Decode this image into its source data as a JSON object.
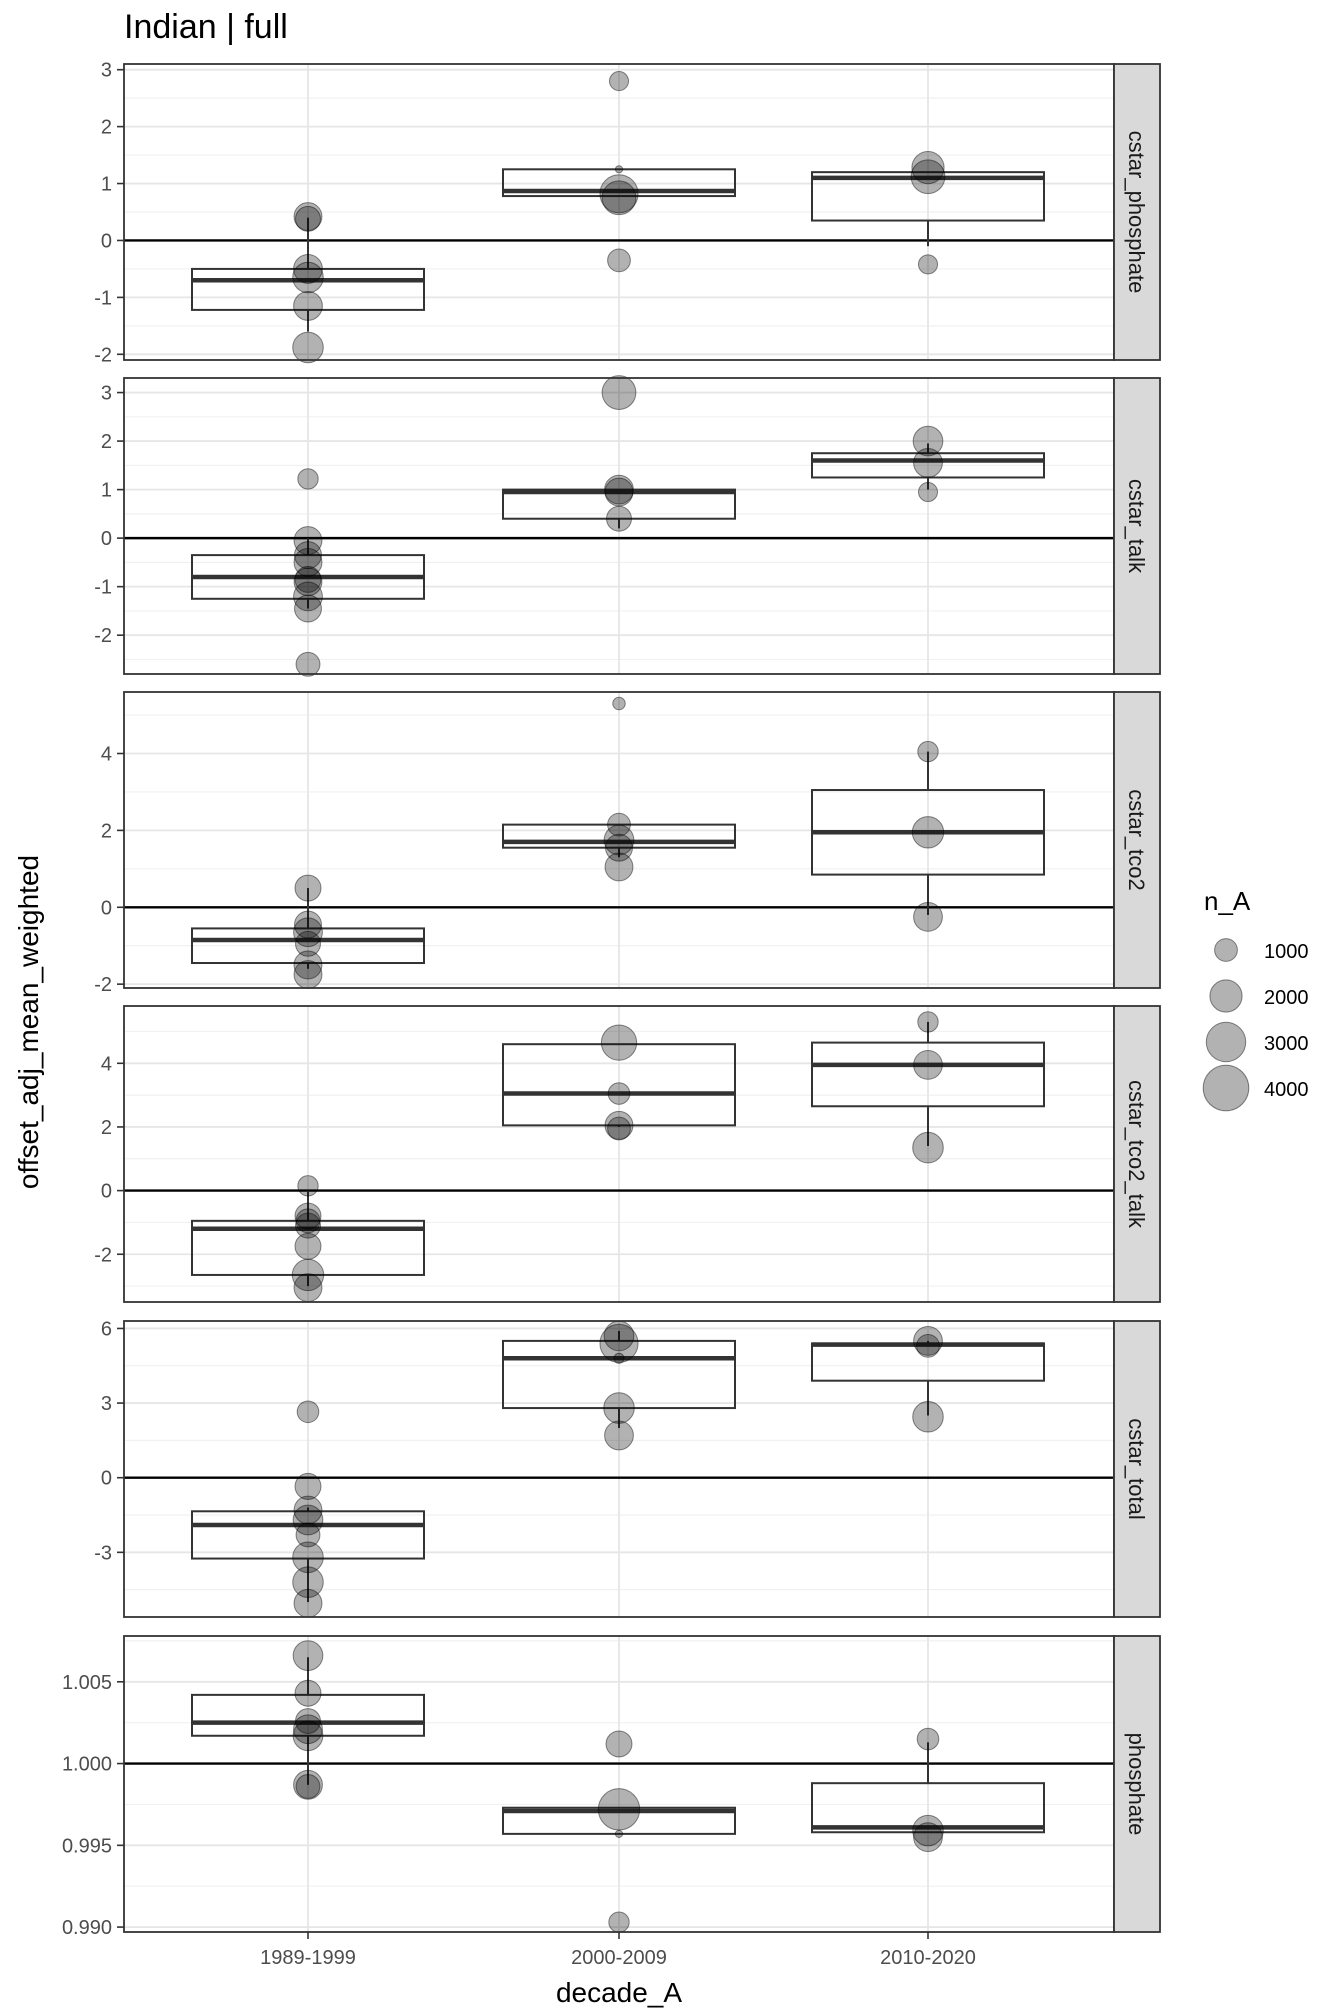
{
  "title": "Indian | full",
  "chart_data": {
    "type": "boxplot",
    "title": "Indian | full",
    "xlabel": "decade_A",
    "ylabel": "offset_adj_mean_weighted",
    "categories": [
      "1989-1999",
      "2000-2009",
      "2010-2020"
    ],
    "reference_line": {
      "variable": "y",
      "note": "horizontal line",
      "values_by_facet": [
        0,
        0,
        0,
        0,
        0,
        1.0
      ]
    },
    "grid": true,
    "legend": {
      "title": "n_A",
      "placement": "right",
      "entries": [
        {
          "label": "1000",
          "value": 1000
        },
        {
          "label": "2000",
          "value": 2000
        },
        {
          "label": "3000",
          "value": 3000
        },
        {
          "label": "4000",
          "value": 4000
        }
      ]
    },
    "facets": [
      {
        "strip": "cstar_phosphate",
        "ylim": [
          -2.1,
          3.1
        ],
        "yticks": [
          -2,
          -1,
          0,
          1,
          2,
          3
        ],
        "ytick_labels": [
          "-2",
          "-1",
          "0",
          "1",
          "2",
          "3"
        ],
        "hline": 0,
        "boxes": [
          {
            "x": "1989-1999",
            "q1": -1.22,
            "median": -0.7,
            "q3": -0.5,
            "whisker_low": -1.6,
            "whisker_high": 0.4
          },
          {
            "x": "2000-2009",
            "q1": 0.78,
            "median": 0.87,
            "q3": 1.25,
            "whisker_low": 0.78,
            "whisker_high": 1.25
          },
          {
            "x": "2010-2020",
            "q1": 0.35,
            "median": 1.1,
            "q3": 1.2,
            "whisker_low": -0.1,
            "whisker_high": 1.2
          }
        ],
        "points": [
          {
            "x": "1989-1999",
            "y": 0.42,
            "n": 1500
          },
          {
            "x": "1989-1999",
            "y": 0.38,
            "n": 1200
          },
          {
            "x": "1989-1999",
            "y": -0.5,
            "n": 1600
          },
          {
            "x": "1989-1999",
            "y": -0.65,
            "n": 1800
          },
          {
            "x": "1989-1999",
            "y": -1.15,
            "n": 1600
          },
          {
            "x": "1989-1999",
            "y": -1.88,
            "n": 1800
          },
          {
            "x": "2000-2009",
            "y": 2.8,
            "n": 700
          },
          {
            "x": "2000-2009",
            "y": 1.25,
            "n": 100
          },
          {
            "x": "2000-2009",
            "y": 0.82,
            "n": 2800
          },
          {
            "x": "2000-2009",
            "y": 0.75,
            "n": 2200
          },
          {
            "x": "2000-2009",
            "y": -0.35,
            "n": 1000
          },
          {
            "x": "2010-2020",
            "y": 1.28,
            "n": 2000
          },
          {
            "x": "2010-2020",
            "y": 1.12,
            "n": 2200
          },
          {
            "x": "2010-2020",
            "y": -0.42,
            "n": 700
          }
        ]
      },
      {
        "strip": "cstar_talk",
        "ylim": [
          -2.8,
          3.3
        ],
        "yticks": [
          -2,
          -1,
          0,
          1,
          2,
          3
        ],
        "ytick_labels": [
          "-2",
          "-1",
          "0",
          "1",
          "2",
          "3"
        ],
        "hline": 0,
        "boxes": [
          {
            "x": "1989-1999",
            "q1": -1.25,
            "median": -0.8,
            "q3": -0.35,
            "whisker_low": -1.45,
            "whisker_high": 0
          },
          {
            "x": "2000-2009",
            "q1": 0.4,
            "median": 0.95,
            "q3": 1.0,
            "whisker_low": 0.2,
            "whisker_high": 1.0
          },
          {
            "x": "2010-2020",
            "q1": 1.25,
            "median": 1.6,
            "q3": 1.75,
            "whisker_low": 1.0,
            "whisker_high": 1.95
          }
        ],
        "points": [
          {
            "x": "1989-1999",
            "y": 1.22,
            "n": 800
          },
          {
            "x": "1989-1999",
            "y": -0.05,
            "n": 1500
          },
          {
            "x": "1989-1999",
            "y": -0.35,
            "n": 1400
          },
          {
            "x": "1989-1999",
            "y": -0.5,
            "n": 1500
          },
          {
            "x": "1989-1999",
            "y": -0.85,
            "n": 1300
          },
          {
            "x": "1989-1999",
            "y": -0.9,
            "n": 1500
          },
          {
            "x": "1989-1999",
            "y": -1.2,
            "n": 1600
          },
          {
            "x": "1989-1999",
            "y": -1.45,
            "n": 1400
          },
          {
            "x": "1989-1999",
            "y": -2.6,
            "n": 1100
          },
          {
            "x": "2000-2009",
            "y": 3.0,
            "n": 2200
          },
          {
            "x": "2000-2009",
            "y": 1.0,
            "n": 1600
          },
          {
            "x": "2000-2009",
            "y": 0.95,
            "n": 1500
          },
          {
            "x": "2000-2009",
            "y": 0.4,
            "n": 1200
          },
          {
            "x": "2010-2020",
            "y": 2.0,
            "n": 1700
          },
          {
            "x": "2010-2020",
            "y": 1.55,
            "n": 1600
          },
          {
            "x": "2010-2020",
            "y": 0.95,
            "n": 700
          }
        ]
      },
      {
        "strip": "cstar_tco2",
        "ylim": [
          -2.1,
          5.6
        ],
        "yticks": [
          -2,
          0,
          2,
          4
        ],
        "ytick_labels": [
          "-2",
          "0",
          "2",
          "4"
        ],
        "hline": 0,
        "boxes": [
          {
            "x": "1989-1999",
            "q1": -1.45,
            "median": -0.85,
            "q3": -0.55,
            "whisker_low": -1.6,
            "whisker_high": 0.5
          },
          {
            "x": "2000-2009",
            "q1": 1.55,
            "median": 1.7,
            "q3": 2.15,
            "whisker_low": 1.3,
            "whisker_high": 2.15
          },
          {
            "x": "2010-2020",
            "q1": 0.85,
            "median": 1.95,
            "q3": 3.05,
            "whisker_low": -0.2,
            "whisker_high": 4.05
          }
        ],
        "points": [
          {
            "x": "1989-1999",
            "y": 0.5,
            "n": 1300
          },
          {
            "x": "1989-1999",
            "y": -0.45,
            "n": 1400
          },
          {
            "x": "1989-1999",
            "y": -0.65,
            "n": 1600
          },
          {
            "x": "1989-1999",
            "y": -0.95,
            "n": 1200
          },
          {
            "x": "1989-1999",
            "y": -1.5,
            "n": 1500
          },
          {
            "x": "1989-1999",
            "y": -1.75,
            "n": 1500
          },
          {
            "x": "2000-2009",
            "y": 5.3,
            "n": 300
          },
          {
            "x": "2000-2009",
            "y": 2.15,
            "n": 1000
          },
          {
            "x": "2000-2009",
            "y": 1.75,
            "n": 1700
          },
          {
            "x": "2000-2009",
            "y": 1.55,
            "n": 1400
          },
          {
            "x": "2000-2009",
            "y": 1.05,
            "n": 1500
          },
          {
            "x": "2010-2020",
            "y": 4.05,
            "n": 800
          },
          {
            "x": "2010-2020",
            "y": 1.95,
            "n": 1900
          },
          {
            "x": "2010-2020",
            "y": -0.25,
            "n": 1600
          }
        ]
      },
      {
        "strip": "cstar_tco2_talk",
        "ylim": [
          -3.5,
          5.8
        ],
        "yticks": [
          -2,
          0,
          2,
          4
        ],
        "ytick_labels": [
          "-2",
          "0",
          "2",
          "4"
        ],
        "hline": 0,
        "boxes": [
          {
            "x": "1989-1999",
            "q1": -2.65,
            "median": -1.2,
            "q3": -0.95,
            "whisker_low": -3.0,
            "whisker_high": 0
          },
          {
            "x": "2000-2009",
            "q1": 2.05,
            "median": 3.05,
            "q3": 4.6,
            "whisker_low": 2.0,
            "whisker_high": 4.6
          },
          {
            "x": "2010-2020",
            "q1": 2.65,
            "median": 3.95,
            "q3": 4.65,
            "whisker_low": 1.4,
            "whisker_high": 5.3
          }
        ],
        "points": [
          {
            "x": "1989-1999",
            "y": 0.15,
            "n": 800
          },
          {
            "x": "1989-1999",
            "y": -0.8,
            "n": 1300
          },
          {
            "x": "1989-1999",
            "y": -0.95,
            "n": 1100
          },
          {
            "x": "1989-1999",
            "y": -1.1,
            "n": 1200
          },
          {
            "x": "1989-1999",
            "y": -1.75,
            "n": 1300
          },
          {
            "x": "1989-1999",
            "y": -2.65,
            "n": 1900
          },
          {
            "x": "1989-1999",
            "y": -3.05,
            "n": 1500
          },
          {
            "x": "2000-2009",
            "y": 4.65,
            "n": 2400
          },
          {
            "x": "2000-2009",
            "y": 3.05,
            "n": 900
          },
          {
            "x": "2000-2009",
            "y": 2.05,
            "n": 1500
          },
          {
            "x": "2000-2009",
            "y": 1.95,
            "n": 1000
          },
          {
            "x": "2010-2020",
            "y": 5.3,
            "n": 800
          },
          {
            "x": "2010-2020",
            "y": 3.95,
            "n": 1600
          },
          {
            "x": "2010-2020",
            "y": 1.35,
            "n": 1800
          }
        ]
      },
      {
        "strip": "cstar_total",
        "ylim": [
          -5.6,
          6.3
        ],
        "yticks": [
          -3,
          0,
          3,
          6
        ],
        "ytick_labels": [
          "-3",
          "0",
          "3",
          "6"
        ],
        "hline": 0,
        "boxes": [
          {
            "x": "1989-1999",
            "q1": -3.25,
            "median": -1.9,
            "q3": -1.35,
            "whisker_low": -5.0,
            "whisker_high": -1.2
          },
          {
            "x": "2000-2009",
            "q1": 2.8,
            "median": 4.8,
            "q3": 5.5,
            "whisker_low": 2.0,
            "whisker_high": 5.9
          },
          {
            "x": "2010-2020",
            "q1": 3.9,
            "median": 5.35,
            "q3": 5.4,
            "whisker_low": 2.5,
            "whisker_high": 5.5
          }
        ],
        "points": [
          {
            "x": "1989-1999",
            "y": 2.65,
            "n": 900
          },
          {
            "x": "1989-1999",
            "y": -0.35,
            "n": 1300
          },
          {
            "x": "1989-1999",
            "y": -1.3,
            "n": 1500
          },
          {
            "x": "1989-1999",
            "y": -1.7,
            "n": 1700
          },
          {
            "x": "1989-1999",
            "y": -2.3,
            "n": 1100
          },
          {
            "x": "1989-1999",
            "y": -3.2,
            "n": 1800
          },
          {
            "x": "1989-1999",
            "y": -4.2,
            "n": 1800
          },
          {
            "x": "1989-1999",
            "y": -5.05,
            "n": 1500
          },
          {
            "x": "2000-2009",
            "y": 5.7,
            "n": 1700
          },
          {
            "x": "2000-2009",
            "y": 5.4,
            "n": 2800
          },
          {
            "x": "2000-2009",
            "y": 4.8,
            "n": 200
          },
          {
            "x": "2000-2009",
            "y": 2.8,
            "n": 1800
          },
          {
            "x": "2000-2009",
            "y": 1.7,
            "n": 1600
          },
          {
            "x": "2010-2020",
            "y": 5.5,
            "n": 1600
          },
          {
            "x": "2010-2020",
            "y": 5.3,
            "n": 1000
          },
          {
            "x": "2010-2020",
            "y": 2.45,
            "n": 1800
          }
        ]
      },
      {
        "strip": "phosphate",
        "ylim": [
          0.9897,
          1.0078
        ],
        "yticks": [
          0.99,
          0.995,
          1.0,
          1.005
        ],
        "ytick_labels": [
          "0.990",
          "0.995",
          "1.000",
          "1.005"
        ],
        "hline": 1.0,
        "boxes": [
          {
            "x": "1989-1999",
            "q1": 1.0017,
            "median": 1.0025,
            "q3": 1.0042,
            "whisker_low": 0.9987,
            "whisker_high": 1.0065
          },
          {
            "x": "2000-2009",
            "q1": 0.9957,
            "median": 0.9971,
            "q3": 0.9973,
            "whisker_low": 0.9957,
            "whisker_high": 0.9973
          },
          {
            "x": "2010-2020",
            "q1": 0.9958,
            "median": 0.9961,
            "q3": 0.9988,
            "whisker_low": 0.9958,
            "whisker_high": 1.0013
          }
        ],
        "points": [
          {
            "x": "1989-1999",
            "y": 1.0066,
            "n": 1700
          },
          {
            "x": "1989-1999",
            "y": 1.0043,
            "n": 1300
          },
          {
            "x": "1989-1999",
            "y": 1.0026,
            "n": 1200
          },
          {
            "x": "1989-1999",
            "y": 1.0021,
            "n": 1600
          },
          {
            "x": "1989-1999",
            "y": 1.0017,
            "n": 1700
          },
          {
            "x": "1989-1999",
            "y": 0.9987,
            "n": 1600
          },
          {
            "x": "1989-1999",
            "y": 0.9986,
            "n": 1100
          },
          {
            "x": "2000-2009",
            "y": 1.0012,
            "n": 1300
          },
          {
            "x": "2000-2009",
            "y": 0.9972,
            "n": 3300
          },
          {
            "x": "2000-2009",
            "y": 0.9957,
            "n": 100
          },
          {
            "x": "2000-2009",
            "y": 0.9903,
            "n": 800
          },
          {
            "x": "2010-2020",
            "y": 1.0015,
            "n": 900
          },
          {
            "x": "2010-2020",
            "y": 0.9959,
            "n": 1800
          },
          {
            "x": "2010-2020",
            "y": 0.9955,
            "n": 1600
          }
        ]
      }
    ]
  }
}
